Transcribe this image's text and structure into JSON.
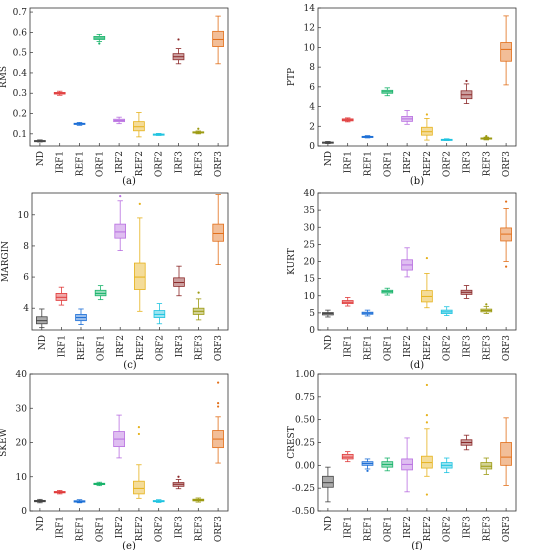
{
  "palette": {
    "ND": "#444444",
    "IRF1": "#e03b3b",
    "REF1": "#1d6fd6",
    "ORF1": "#18b36a",
    "IRF2": "#b86fe0",
    "REF2": "#e6b21c",
    "ORF2": "#1ec3e0",
    "IRF3": "#8c2a2a",
    "REF3": "#9c9a12",
    "ORF3": "#e26f1a"
  },
  "chart_data": [
    {
      "type": "box",
      "panel_label": "(a)",
      "ylabel": "RMS",
      "categories": [
        "ND",
        "IRF1",
        "REF1",
        "ORF1",
        "IRF2",
        "REF2",
        "ORF2",
        "IRF3",
        "REF3",
        "ORF3"
      ],
      "ylim": [
        0.04,
        0.72
      ],
      "yticks": [
        "0.1",
        "0.2",
        "0.3",
        "0.4",
        "0.5",
        "0.6",
        "0.7"
      ],
      "boxes": [
        {
          "min": 0.06,
          "q1": 0.063,
          "median": 0.065,
          "q3": 0.067,
          "max": 0.07,
          "outliers": []
        },
        {
          "min": 0.29,
          "q1": 0.296,
          "median": 0.3,
          "q3": 0.304,
          "max": 0.31,
          "outliers": []
        },
        {
          "min": 0.142,
          "q1": 0.146,
          "median": 0.149,
          "q3": 0.152,
          "max": 0.156,
          "outliers": []
        },
        {
          "min": 0.555,
          "q1": 0.565,
          "median": 0.572,
          "q3": 0.58,
          "max": 0.59,
          "outliers": [
            0.545
          ]
        },
        {
          "min": 0.15,
          "q1": 0.16,
          "median": 0.166,
          "q3": 0.172,
          "max": 0.182,
          "outliers": []
        },
        {
          "min": 0.085,
          "q1": 0.115,
          "median": 0.135,
          "q3": 0.16,
          "max": 0.205,
          "outliers": []
        },
        {
          "min": 0.092,
          "q1": 0.095,
          "median": 0.097,
          "q3": 0.099,
          "max": 0.102,
          "outliers": []
        },
        {
          "min": 0.445,
          "q1": 0.465,
          "median": 0.48,
          "q3": 0.495,
          "max": 0.52,
          "outliers": [
            0.565
          ]
        },
        {
          "min": 0.1,
          "q1": 0.104,
          "median": 0.107,
          "q3": 0.11,
          "max": 0.114,
          "outliers": [
            0.125
          ]
        },
        {
          "min": 0.445,
          "q1": 0.53,
          "median": 0.565,
          "q3": 0.605,
          "max": 0.68,
          "outliers": []
        }
      ]
    },
    {
      "type": "box",
      "panel_label": "(b)",
      "ylabel": "PTP",
      "categories": [
        "ND",
        "IRF1",
        "REF1",
        "ORF1",
        "IRF2",
        "REF2",
        "ORF2",
        "IRF3",
        "REF3",
        "ORF3"
      ],
      "ylim": [
        0,
        14
      ],
      "yticks": [
        "0",
        "2",
        "4",
        "6",
        "8",
        "10",
        "12",
        "14"
      ],
      "boxes": [
        {
          "min": 0.25,
          "q1": 0.32,
          "median": 0.36,
          "q3": 0.4,
          "max": 0.46,
          "outliers": []
        },
        {
          "min": 2.45,
          "q1": 2.55,
          "median": 2.65,
          "q3": 2.75,
          "max": 2.85,
          "outliers": []
        },
        {
          "min": 0.82,
          "q1": 0.88,
          "median": 0.93,
          "q3": 0.98,
          "max": 1.05,
          "outliers": []
        },
        {
          "min": 5.1,
          "q1": 5.35,
          "median": 5.5,
          "q3": 5.65,
          "max": 5.9,
          "outliers": []
        },
        {
          "min": 2.2,
          "q1": 2.5,
          "median": 2.75,
          "q3": 3.0,
          "max": 3.6,
          "outliers": []
        },
        {
          "min": 0.6,
          "q1": 1.1,
          "median": 1.45,
          "q3": 1.9,
          "max": 2.8,
          "outliers": [
            3.2
          ]
        },
        {
          "min": 0.55,
          "q1": 0.6,
          "median": 0.64,
          "q3": 0.68,
          "max": 0.73,
          "outliers": []
        },
        {
          "min": 4.3,
          "q1": 4.8,
          "median": 5.2,
          "q3": 5.6,
          "max": 6.3,
          "outliers": [
            6.6
          ]
        },
        {
          "min": 0.62,
          "q1": 0.7,
          "median": 0.76,
          "q3": 0.82,
          "max": 0.9,
          "outliers": [
            1.0
          ]
        },
        {
          "min": 6.2,
          "q1": 8.6,
          "median": 9.8,
          "q3": 10.5,
          "max": 13.2,
          "outliers": []
        }
      ]
    },
    {
      "type": "box",
      "panel_label": "(c)",
      "ylabel": "MARGIN",
      "categories": [
        "ND",
        "IRF1",
        "REF1",
        "ORF1",
        "IRF2",
        "REF2",
        "ORF2",
        "IRF3",
        "REF3",
        "ORF3"
      ],
      "ylim": [
        2.6,
        11.4
      ],
      "yticks": [
        "4",
        "6",
        "8",
        "10"
      ],
      "boxes": [
        {
          "min": 2.75,
          "q1": 3.0,
          "median": 3.2,
          "q3": 3.45,
          "max": 3.95,
          "outliers": []
        },
        {
          "min": 4.2,
          "q1": 4.5,
          "median": 4.7,
          "q3": 4.95,
          "max": 5.35,
          "outliers": []
        },
        {
          "min": 2.95,
          "q1": 3.2,
          "median": 3.4,
          "q3": 3.6,
          "max": 3.95,
          "outliers": []
        },
        {
          "min": 4.55,
          "q1": 4.8,
          "median": 4.95,
          "q3": 5.15,
          "max": 5.45,
          "outliers": []
        },
        {
          "min": 7.7,
          "q1": 8.5,
          "median": 8.9,
          "q3": 9.4,
          "max": 10.9,
          "outliers": [
            11.2
          ]
        },
        {
          "min": 3.8,
          "q1": 5.2,
          "median": 6.0,
          "q3": 6.9,
          "max": 9.8,
          "outliers": [
            10.7
          ]
        },
        {
          "min": 3.0,
          "q1": 3.4,
          "median": 3.6,
          "q3": 3.85,
          "max": 4.3,
          "outliers": []
        },
        {
          "min": 4.8,
          "q1": 5.4,
          "median": 5.65,
          "q3": 5.95,
          "max": 6.7,
          "outliers": []
        },
        {
          "min": 3.25,
          "q1": 3.6,
          "median": 3.8,
          "q3": 4.0,
          "max": 4.6,
          "outliers": [
            5.0
          ]
        },
        {
          "min": 6.8,
          "q1": 8.3,
          "median": 8.8,
          "q3": 9.4,
          "max": 11.3,
          "outliers": []
        }
      ]
    },
    {
      "type": "box",
      "panel_label": "(d)",
      "ylabel": "KURT",
      "categories": [
        "ND",
        "IRF1",
        "REF1",
        "ORF1",
        "IRF2",
        "REF2",
        "ORF2",
        "IRF3",
        "REF3",
        "ORF3"
      ],
      "ylim": [
        0,
        40
      ],
      "yticks": [
        "0",
        "5",
        "10",
        "15",
        "20",
        "25",
        "30",
        "35",
        "40"
      ],
      "boxes": [
        {
          "min": 3.8,
          "q1": 4.4,
          "median": 4.8,
          "q3": 5.1,
          "max": 5.8,
          "outliers": []
        },
        {
          "min": 7.0,
          "q1": 7.7,
          "median": 8.1,
          "q3": 8.6,
          "max": 9.5,
          "outliers": []
        },
        {
          "min": 4.1,
          "q1": 4.6,
          "median": 4.9,
          "q3": 5.2,
          "max": 5.8,
          "outliers": []
        },
        {
          "min": 10.2,
          "q1": 10.8,
          "median": 11.2,
          "q3": 11.6,
          "max": 12.2,
          "outliers": []
        },
        {
          "min": 15.5,
          "q1": 17.5,
          "median": 19.0,
          "q3": 20.5,
          "max": 24.0,
          "outliers": []
        },
        {
          "min": 6.5,
          "q1": 8.2,
          "median": 9.8,
          "q3": 11.5,
          "max": 16.5,
          "outliers": [
            21.0
          ]
        },
        {
          "min": 4.2,
          "q1": 4.8,
          "median": 5.3,
          "q3": 5.8,
          "max": 6.8,
          "outliers": []
        },
        {
          "min": 9.2,
          "q1": 10.4,
          "median": 11.0,
          "q3": 11.6,
          "max": 13.0,
          "outliers": []
        },
        {
          "min": 4.8,
          "q1": 5.3,
          "median": 5.7,
          "q3": 6.1,
          "max": 6.9,
          "outliers": [
            7.5
          ]
        },
        {
          "min": 20.0,
          "q1": 26.0,
          "median": 28.0,
          "q3": 29.8,
          "max": 35.5,
          "outliers": [
            18.5,
            37.5
          ]
        }
      ]
    },
    {
      "type": "box",
      "panel_label": "(e)",
      "ylabel": "SKEW",
      "categories": [
        "ND",
        "IRF1",
        "REF1",
        "ORF1",
        "IRF2",
        "REF2",
        "ORF2",
        "IRF3",
        "REF3",
        "ORF3"
      ],
      "ylim": [
        0,
        40
      ],
      "yticks": [
        "0",
        "10",
        "20",
        "30",
        "40"
      ],
      "boxes": [
        {
          "min": 2.4,
          "q1": 2.7,
          "median": 2.9,
          "q3": 3.1,
          "max": 3.4,
          "outliers": []
        },
        {
          "min": 5.0,
          "q1": 5.3,
          "median": 5.5,
          "q3": 5.7,
          "max": 6.0,
          "outliers": []
        },
        {
          "min": 2.4,
          "q1": 2.6,
          "median": 2.8,
          "q3": 3.0,
          "max": 3.3,
          "outliers": []
        },
        {
          "min": 7.4,
          "q1": 7.7,
          "median": 7.9,
          "q3": 8.1,
          "max": 8.4,
          "outliers": []
        },
        {
          "min": 15.5,
          "q1": 18.8,
          "median": 21.0,
          "q3": 23.2,
          "max": 28.0,
          "outliers": []
        },
        {
          "min": 3.7,
          "q1": 5.0,
          "median": 6.6,
          "q3": 8.7,
          "max": 13.5,
          "outliers": [
            22.5,
            24.5
          ]
        },
        {
          "min": 2.5,
          "q1": 2.75,
          "median": 2.9,
          "q3": 3.05,
          "max": 3.3,
          "outliers": []
        },
        {
          "min": 6.5,
          "q1": 7.2,
          "median": 7.8,
          "q3": 8.3,
          "max": 9.2,
          "outliers": [
            10.0
          ]
        },
        {
          "min": 2.6,
          "q1": 2.95,
          "median": 3.2,
          "q3": 3.45,
          "max": 3.8,
          "outliers": []
        },
        {
          "min": 14.0,
          "q1": 18.5,
          "median": 21.0,
          "q3": 23.5,
          "max": 27.5,
          "outliers": [
            30.5,
            31.5,
            37.5
          ]
        }
      ]
    },
    {
      "type": "box",
      "panel_label": "(f)",
      "ylabel": "CREST",
      "categories": [
        "ND",
        "IRF1",
        "REF1",
        "ORF1",
        "IRF2",
        "REF2",
        "ORF2",
        "IRF3",
        "REF3",
        "ORF3"
      ],
      "ylim": [
        -0.5,
        1.0
      ],
      "yticks": [
        "-0.50",
        "-0.25",
        "0.00",
        "0.25",
        "0.50",
        "0.75",
        "1.00"
      ],
      "boxes": [
        {
          "min": -0.4,
          "q1": -0.24,
          "median": -0.19,
          "q3": -0.12,
          "max": -0.02,
          "outliers": []
        },
        {
          "min": 0.04,
          "q1": 0.07,
          "median": 0.09,
          "q3": 0.12,
          "max": 0.15,
          "outliers": []
        },
        {
          "min": -0.04,
          "q1": 0.0,
          "median": 0.02,
          "q3": 0.04,
          "max": 0.07,
          "outliers": [
            -0.06
          ]
        },
        {
          "min": -0.06,
          "q1": -0.02,
          "median": 0.01,
          "q3": 0.04,
          "max": 0.08,
          "outliers": []
        },
        {
          "min": -0.29,
          "q1": -0.05,
          "median": 0.01,
          "q3": 0.07,
          "max": 0.3,
          "outliers": []
        },
        {
          "min": -0.12,
          "q1": -0.03,
          "median": 0.03,
          "q3": 0.1,
          "max": 0.4,
          "outliers": [
            -0.32,
            0.47,
            0.55,
            0.88
          ]
        },
        {
          "min": -0.08,
          "q1": -0.03,
          "median": 0.0,
          "q3": 0.03,
          "max": 0.08,
          "outliers": []
        },
        {
          "min": 0.17,
          "q1": 0.22,
          "median": 0.25,
          "q3": 0.28,
          "max": 0.33,
          "outliers": []
        },
        {
          "min": -0.1,
          "q1": -0.04,
          "median": -0.01,
          "q3": 0.03,
          "max": 0.08,
          "outliers": []
        },
        {
          "min": -0.22,
          "q1": 0.0,
          "median": 0.09,
          "q3": 0.25,
          "max": 0.52,
          "outliers": []
        }
      ]
    }
  ]
}
